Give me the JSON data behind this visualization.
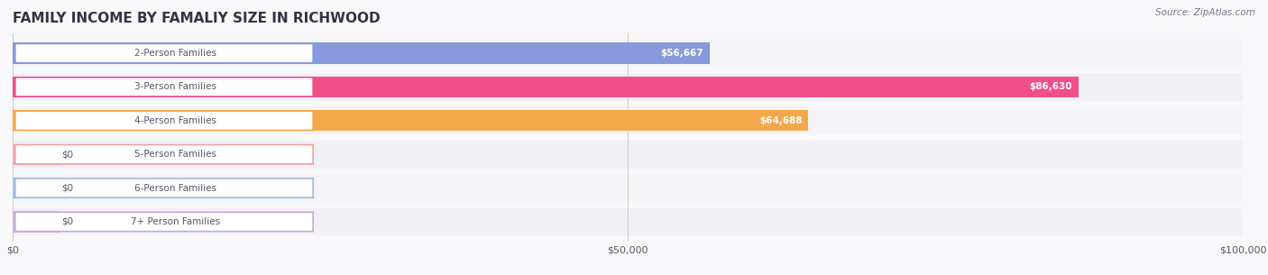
{
  "title": "FAMILY INCOME BY FAMALIY SIZE IN RICHWOOD",
  "source": "Source: ZipAtlas.com",
  "categories": [
    "2-Person Families",
    "3-Person Families",
    "4-Person Families",
    "5-Person Families",
    "6-Person Families",
    "7+ Person Families"
  ],
  "values": [
    56667,
    86630,
    64688,
    0,
    0,
    0
  ],
  "bar_colors": [
    "#8899dd",
    "#f0508a",
    "#f5a84a",
    "#f4a0a0",
    "#99b8e8",
    "#c8a8d8"
  ],
  "bar_bg_color": "#eeeeee",
  "row_bg_colors": [
    "#f5f5f8",
    "#f0f0f5"
  ],
  "xlim": [
    0,
    100000
  ],
  "xticks": [
    0,
    50000,
    100000
  ],
  "xtick_labels": [
    "$0",
    "$50,000",
    "$100,000"
  ],
  "title_color": "#333344",
  "label_color": "#555566",
  "value_label_color_inside": "#ffffff",
  "value_label_color_outside": "#555566",
  "source_color": "#777788",
  "background_color": "#f9f9fc"
}
